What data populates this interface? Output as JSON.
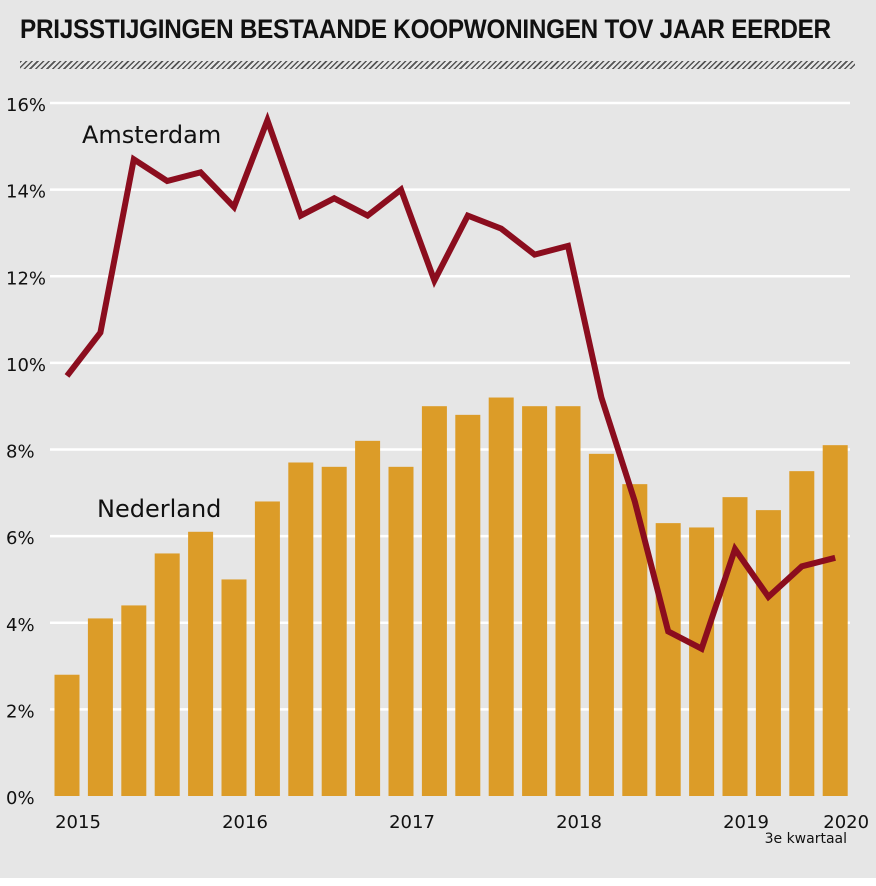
{
  "title": "PRIJSSTIJGINGEN BESTAANDE KOOPWONINGEN TOV JAAR EERDER",
  "colors": {
    "bars": "#dc9c28",
    "line": "#8b0d1e",
    "background": "#e6e6e6",
    "grid": "#ffffff"
  },
  "chart_data": {
    "type": "bar",
    "title": "PRIJSSTIJGINGEN BESTAANDE KOOPWONINGEN TOV JAAR EERDER",
    "xlabel": "",
    "ylabel": "",
    "ylim": [
      0,
      16
    ],
    "yticks": [
      "0%",
      "2%",
      "4%",
      "6%",
      "8%",
      "10%",
      "12%",
      "14%",
      "16%"
    ],
    "ytick_values": [
      0,
      2,
      4,
      6,
      8,
      10,
      12,
      14,
      16
    ],
    "grid": true,
    "x_tick_labels": [
      {
        "label": "2015",
        "index": 0
      },
      {
        "label": "2016",
        "index": 5
      },
      {
        "label": "2017",
        "index": 10
      },
      {
        "label": "2018",
        "index": 15
      },
      {
        "label": "2019",
        "index": 20
      },
      {
        "label": "2020",
        "index": 23
      }
    ],
    "note": "3e kwartaal",
    "series": [
      {
        "name": "Nederland",
        "type": "bar",
        "values": [
          2.8,
          4.1,
          4.4,
          5.6,
          6.1,
          5.0,
          6.8,
          7.7,
          7.6,
          8.2,
          7.6,
          9.0,
          8.8,
          9.2,
          9.0,
          9.0,
          7.9,
          7.2,
          6.3,
          6.2,
          6.9,
          6.6,
          7.5,
          8.1
        ]
      },
      {
        "name": "Amsterdam",
        "type": "line",
        "values": [
          9.7,
          10.7,
          14.7,
          14.2,
          14.4,
          13.6,
          15.6,
          13.4,
          13.8,
          13.4,
          14.0,
          11.9,
          13.4,
          13.1,
          12.5,
          12.7,
          9.2,
          6.8,
          3.8,
          3.4,
          5.7,
          4.6,
          5.3,
          5.5
        ]
      }
    ]
  }
}
